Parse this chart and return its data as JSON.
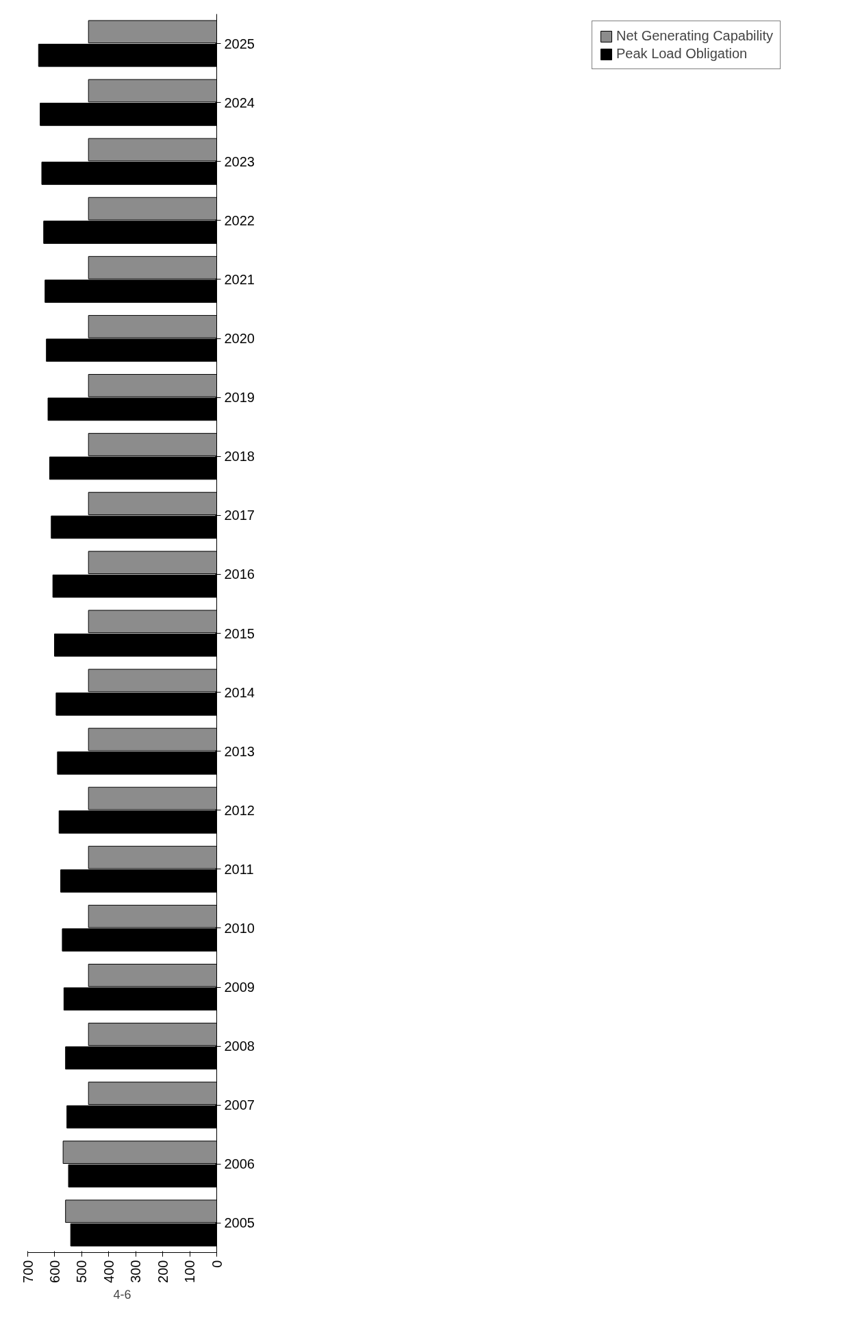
{
  "chart_data": {
    "type": "bar",
    "orientation": "horizontal",
    "categories": [
      "2025",
      "2024",
      "2023",
      "2022",
      "2021",
      "2020",
      "2019",
      "2018",
      "2017",
      "2016",
      "2015",
      "2014",
      "2013",
      "2012",
      "2011",
      "2010",
      "2009",
      "2008",
      "2007",
      "2006",
      "2005"
    ],
    "series": [
      {
        "name": "Net Generating Capability",
        "color": "#8c8c8c",
        "values": [
          475,
          475,
          475,
          475,
          475,
          475,
          475,
          475,
          475,
          475,
          475,
          475,
          475,
          475,
          475,
          475,
          475,
          475,
          475,
          569,
          560
        ]
      },
      {
        "name": "Peak Load Obligation",
        "color": "#000000",
        "values": [
          660,
          654,
          648,
          641,
          636,
          631,
          625,
          619,
          613,
          607,
          601,
          595,
          590,
          584,
          578,
          572,
          566,
          560,
          555,
          549,
          541
        ]
      }
    ],
    "xlim": [
      700,
      0
    ],
    "xticks": [
      700,
      600,
      500,
      400,
      300,
      200,
      100,
      0
    ],
    "grid": false,
    "legend": "right",
    "annotations": [
      "4-6"
    ]
  }
}
